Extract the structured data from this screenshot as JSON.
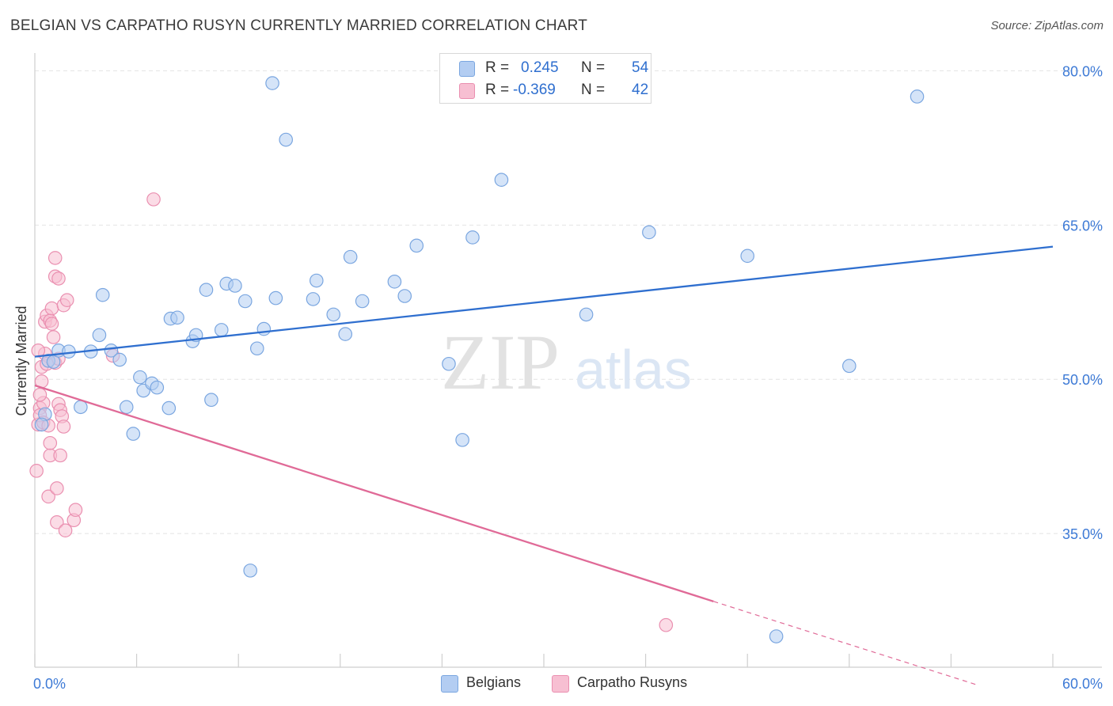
{
  "title": "BELGIAN VS CARPATHO RUSYN CURRENTLY MARRIED CORRELATION CHART",
  "source": "Source: ZipAtlas.com",
  "watermark": {
    "zip": "ZIP",
    "atlas": "atlas"
  },
  "legend": {
    "rows": [
      {
        "r_label": "R =",
        "r_value": "0.245",
        "n_label": "N =",
        "n_value": "54"
      },
      {
        "r_label": "R =",
        "r_value": "-0.369",
        "n_label": "N =",
        "n_value": "42"
      }
    ]
  },
  "colors": {
    "belgians_fill": "#b3cdf2",
    "belgians_stroke": "#7aa6e0",
    "belgians_line": "#2f6fcf",
    "rusyns_fill": "#f7bfd2",
    "rusyns_stroke": "#ea8fb0",
    "rusyns_line": "#e06a97",
    "tick_label": "#3d7ad6",
    "grid": "#e4e4e4"
  },
  "chart_data": {
    "type": "scatter",
    "title": "BELGIAN VS CARPATHO RUSYN CURRENTLY MARRIED CORRELATION CHART",
    "xlabel": "",
    "ylabel": "Currently Married",
    "xlim": [
      0,
      60
    ],
    "ylim": [
      22,
      81.5
    ],
    "x_tick_labels": [
      {
        "value": 0,
        "label": "0.0%"
      },
      {
        "value": 60,
        "label": "60.0%"
      }
    ],
    "y_tick_labels": [
      {
        "value": 80,
        "label": "80.0%"
      },
      {
        "value": 65,
        "label": "65.0%"
      },
      {
        "value": 50,
        "label": "50.0%"
      },
      {
        "value": 35,
        "label": "35.0%"
      }
    ],
    "grid": true,
    "legend_position": "top-center",
    "series": [
      {
        "name": "Belgians",
        "points": [
          [
            0.6,
            46.6
          ],
          [
            0.8,
            51.8
          ],
          [
            1.1,
            51.7
          ],
          [
            1.4,
            52.8
          ],
          [
            2.0,
            52.7
          ],
          [
            2.7,
            47.3
          ],
          [
            3.3,
            52.7
          ],
          [
            3.8,
            54.3
          ],
          [
            4.0,
            58.2
          ],
          [
            4.5,
            52.8
          ],
          [
            5.0,
            51.9
          ],
          [
            5.4,
            47.3
          ],
          [
            5.8,
            44.7
          ],
          [
            6.2,
            50.2
          ],
          [
            6.4,
            48.9
          ],
          [
            6.9,
            49.6
          ],
          [
            7.2,
            49.2
          ],
          [
            7.9,
            47.2
          ],
          [
            8.0,
            55.9
          ],
          [
            8.4,
            56.0
          ],
          [
            9.3,
            53.7
          ],
          [
            9.5,
            54.3
          ],
          [
            10.1,
            58.7
          ],
          [
            10.4,
            48.0
          ],
          [
            11.0,
            54.8
          ],
          [
            11.3,
            59.3
          ],
          [
            11.8,
            59.1
          ],
          [
            12.4,
            57.6
          ],
          [
            12.7,
            31.4
          ],
          [
            13.1,
            53.0
          ],
          [
            13.5,
            54.9
          ],
          [
            14.0,
            78.8
          ],
          [
            14.2,
            57.9
          ],
          [
            14.8,
            73.3
          ],
          [
            16.4,
            57.8
          ],
          [
            16.6,
            59.6
          ],
          [
            17.6,
            56.3
          ],
          [
            18.3,
            54.4
          ],
          [
            18.6,
            61.9
          ],
          [
            19.3,
            57.6
          ],
          [
            21.2,
            59.5
          ],
          [
            21.8,
            58.1
          ],
          [
            22.5,
            63.0
          ],
          [
            24.4,
            51.5
          ],
          [
            25.2,
            44.1
          ],
          [
            25.8,
            63.8
          ],
          [
            27.5,
            69.4
          ],
          [
            32.5,
            56.3
          ],
          [
            36.2,
            64.3
          ],
          [
            42.0,
            62.0
          ],
          [
            43.7,
            25.0
          ],
          [
            48.0,
            51.3
          ],
          [
            52.0,
            77.5
          ],
          [
            0.4,
            45.6
          ]
        ]
      },
      {
        "name": "Carpatho Rusyns",
        "points": [
          [
            0.1,
            41.1
          ],
          [
            0.2,
            45.6
          ],
          [
            0.3,
            47.2
          ],
          [
            0.3,
            46.5
          ],
          [
            0.4,
            51.2
          ],
          [
            0.4,
            49.8
          ],
          [
            0.5,
            45.8
          ],
          [
            0.5,
            47.7
          ],
          [
            0.6,
            55.6
          ],
          [
            0.6,
            52.5
          ],
          [
            0.7,
            56.2
          ],
          [
            0.7,
            51.5
          ],
          [
            0.8,
            45.5
          ],
          [
            0.8,
            38.6
          ],
          [
            0.9,
            42.6
          ],
          [
            0.9,
            43.8
          ],
          [
            0.9,
            55.7
          ],
          [
            1.0,
            55.4
          ],
          [
            1.0,
            56.9
          ],
          [
            1.1,
            54.1
          ],
          [
            1.2,
            60.0
          ],
          [
            1.2,
            61.8
          ],
          [
            1.2,
            51.6
          ],
          [
            1.3,
            39.4
          ],
          [
            1.3,
            36.1
          ],
          [
            1.4,
            59.8
          ],
          [
            1.4,
            52.0
          ],
          [
            1.4,
            47.6
          ],
          [
            1.5,
            42.6
          ],
          [
            1.5,
            47.0
          ],
          [
            1.6,
            46.4
          ],
          [
            1.7,
            45.4
          ],
          [
            1.7,
            57.2
          ],
          [
            1.8,
            35.3
          ],
          [
            1.9,
            57.7
          ],
          [
            2.3,
            36.3
          ],
          [
            2.4,
            37.3
          ],
          [
            4.6,
            52.3
          ],
          [
            7.0,
            67.5
          ],
          [
            37.2,
            26.1
          ],
          [
            0.2,
            52.8
          ],
          [
            0.3,
            48.5
          ]
        ]
      }
    ],
    "trend_lines": [
      {
        "series": "Belgians",
        "x": [
          0,
          60
        ],
        "y": [
          52.2,
          62.9
        ],
        "style": "solid"
      },
      {
        "series": "Carpatho Rusyns",
        "x": [
          0,
          40.0
        ],
        "y": [
          49.4,
          28.4
        ],
        "style": "solid"
      },
      {
        "series": "Carpatho Rusyns",
        "x": [
          40.0,
          55.5
        ],
        "y": [
          28.4,
          20.3
        ],
        "style": "dashed"
      }
    ]
  },
  "bottom_legend": [
    {
      "label": "Belgians"
    },
    {
      "label": "Carpatho Rusyns"
    }
  ]
}
